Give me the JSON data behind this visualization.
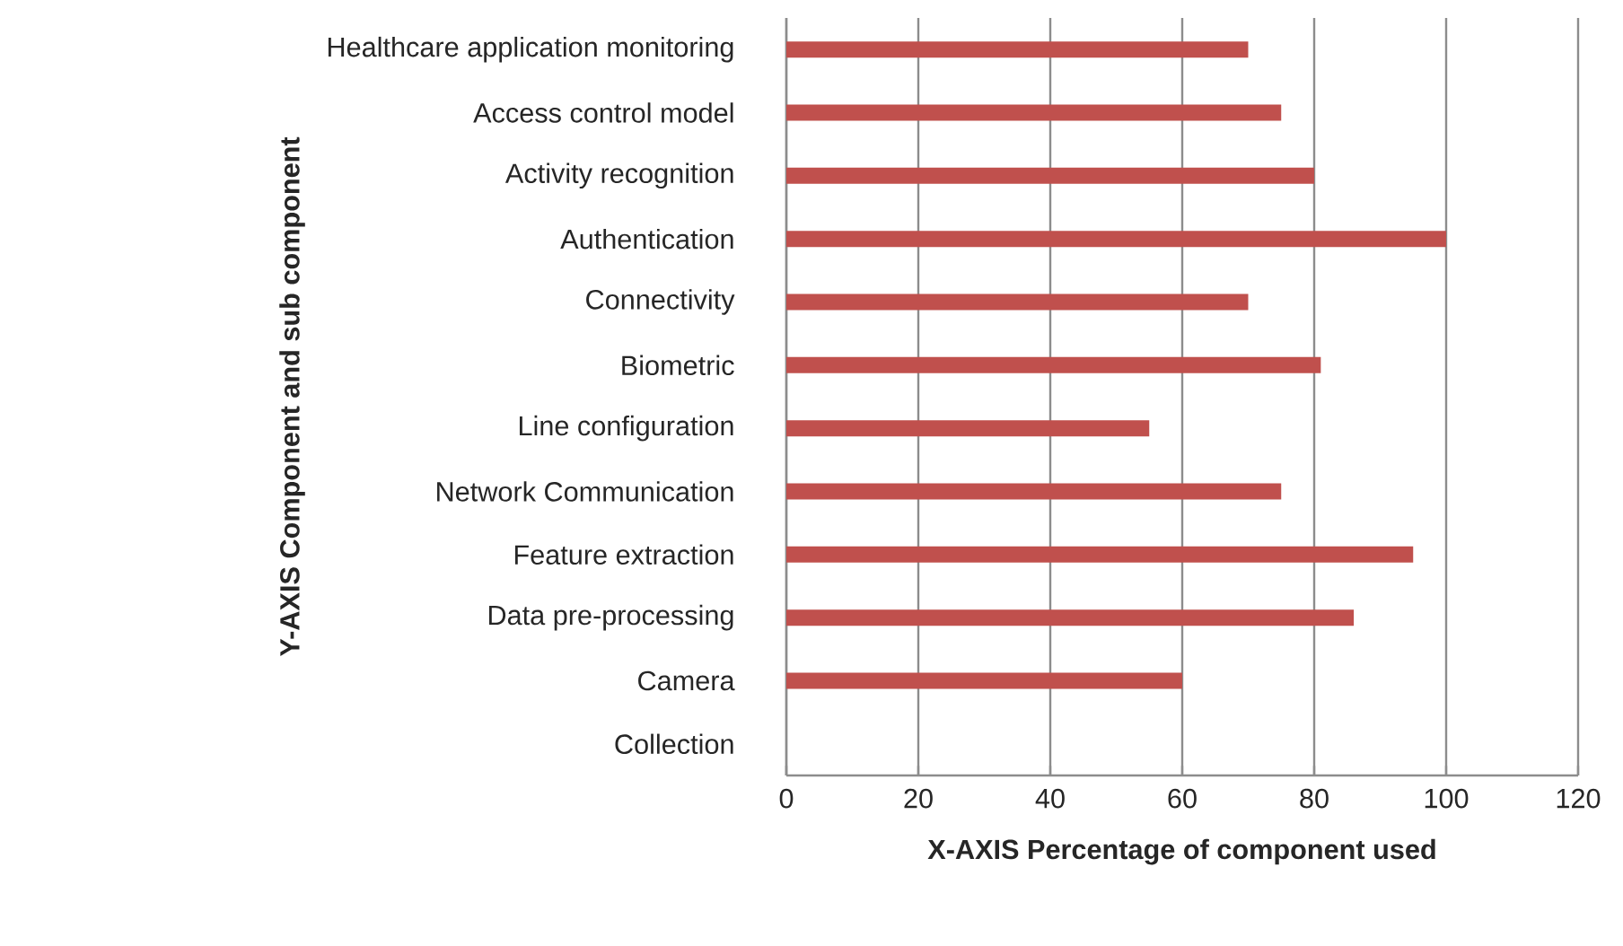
{
  "chart_data": {
    "type": "bar",
    "orientation": "horizontal",
    "xlabel": "X-AXIS Percentage of component used",
    "ylabel": "Y-AXIS Component and sub component",
    "categories": [
      "Healthcare application monitoring",
      "Access control model",
      "Activity recognition",
      "Authentication",
      "Connectivity",
      "Biometric",
      "Line configuration",
      "Network Communication",
      "Feature extraction",
      "Data pre-processing",
      "Camera",
      "Collection"
    ],
    "values": [
      70,
      75,
      80,
      100,
      70,
      81,
      55,
      75,
      95,
      86,
      60,
      0
    ],
    "color": "#c0504d",
    "xlim": [
      0,
      120
    ],
    "xticks": [
      0,
      20,
      40,
      60,
      80,
      100,
      120
    ],
    "grid": "x"
  }
}
